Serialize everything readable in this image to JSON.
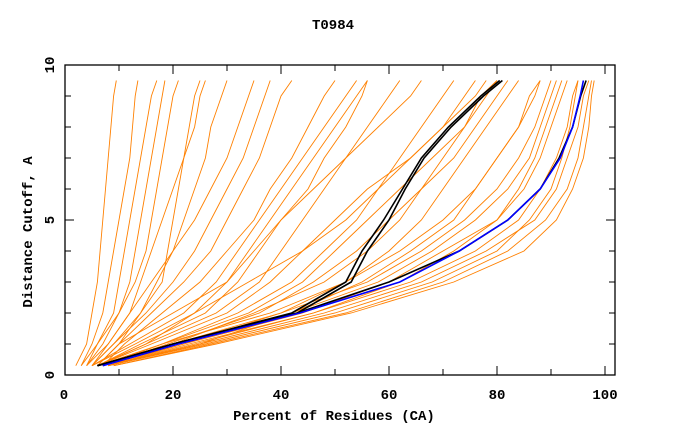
{
  "chart_data": {
    "type": "line",
    "title": "T0984",
    "xlabel": "Percent of Residues (CA)",
    "ylabel": "Distance Cutoff, A",
    "xlim": [
      0,
      102
    ],
    "ylim": [
      0,
      10
    ],
    "x_tick_labels": [
      "0",
      "20",
      "40",
      "60",
      "80",
      "100"
    ],
    "y_tick_labels": [
      "0",
      "5",
      "10"
    ],
    "grid": false,
    "colors": {
      "models": "#ff8000",
      "highlight_black": "#000000",
      "highlight_blue": "#0000ff"
    },
    "y_levels": [
      0.3,
      1,
      2,
      3,
      4,
      5,
      6,
      7,
      8,
      9,
      9.5
    ],
    "model_curves_x": [
      [
        2,
        4,
        5,
        6,
        6.5,
        7,
        7.5,
        8,
        8.5,
        9,
        9.5
      ],
      [
        3,
        5,
        7,
        8,
        9,
        10,
        11,
        12,
        12.5,
        13,
        13.5
      ],
      [
        3,
        6,
        9,
        10,
        11,
        12,
        13,
        14,
        15,
        16,
        17
      ],
      [
        4,
        7,
        10,
        12,
        13,
        14,
        15,
        16,
        17,
        18,
        18.5
      ],
      [
        4,
        6,
        10,
        13,
        15,
        16,
        17,
        18,
        19,
        20,
        21
      ],
      [
        5,
        8,
        12,
        14,
        16,
        18,
        20,
        22,
        23,
        24,
        25
      ],
      [
        5,
        9,
        14,
        18,
        19,
        20,
        21,
        22,
        24,
        25,
        26
      ],
      [
        6,
        10,
        14,
        17,
        20,
        22,
        24,
        26,
        27,
        29,
        30
      ],
      [
        4,
        8,
        12,
        16,
        20,
        24,
        27,
        30,
        32,
        34,
        35
      ],
      [
        5,
        9,
        15,
        20,
        24,
        27,
        30,
        33,
        35,
        37,
        38
      ],
      [
        6,
        10,
        16,
        22,
        27,
        30,
        33,
        36,
        38,
        40,
        42
      ],
      [
        7,
        11,
        18,
        25,
        30,
        35,
        38,
        42,
        45,
        48,
        50
      ],
      [
        6,
        10,
        20,
        30,
        35,
        40,
        45,
        48,
        52,
        55,
        56
      ],
      [
        6,
        15,
        28,
        36,
        40,
        44,
        48,
        52,
        56,
        60,
        62
      ],
      [
        7,
        18,
        32,
        42,
        48,
        54,
        58,
        62,
        66,
        70,
        72
      ],
      [
        8,
        20,
        35,
        48,
        56,
        62,
        66,
        70,
        74,
        77,
        80
      ],
      [
        8,
        22,
        40,
        52,
        60,
        66,
        70,
        74,
        78,
        82,
        84
      ],
      [
        8,
        25,
        42,
        55,
        64,
        72,
        76,
        80,
        84,
        87,
        88
      ],
      [
        7,
        22,
        44,
        60,
        70,
        80,
        85,
        88,
        90,
        92,
        93
      ],
      [
        8,
        24,
        46,
        64,
        76,
        84,
        88,
        91,
        93,
        94,
        95
      ],
      [
        8,
        25,
        48,
        66,
        78,
        87,
        91,
        93,
        95,
        96,
        97
      ],
      [
        9,
        27,
        52,
        70,
        82,
        89,
        93,
        95,
        96,
        97,
        97.5
      ],
      [
        8,
        26,
        50,
        68,
        80,
        86,
        90,
        92,
        93.5,
        94.5,
        95
      ],
      [
        7,
        21,
        42,
        58,
        68,
        76,
        82,
        86,
        88,
        90,
        91
      ],
      [
        8,
        23,
        46,
        62,
        72,
        80,
        84,
        87,
        89,
        91,
        92
      ],
      [
        7,
        20,
        40,
        56,
        66,
        74,
        80,
        84,
        87,
        89,
        90
      ],
      [
        9,
        28,
        53,
        72,
        85,
        91,
        94,
        96,
        97,
        97.5,
        98
      ],
      [
        6,
        18,
        38,
        52,
        62,
        70,
        76,
        80,
        84,
        86,
        88
      ],
      [
        7,
        19,
        36,
        46,
        54,
        60,
        66,
        72,
        76,
        80,
        82
      ],
      [
        7,
        18,
        34,
        44,
        50,
        56,
        62,
        68,
        74,
        78,
        80
      ],
      [
        6,
        16,
        30,
        38,
        44,
        50,
        56,
        64,
        70,
        76,
        78
      ],
      [
        6,
        14,
        26,
        32,
        36,
        40,
        46,
        52,
        58,
        64,
        66
      ],
      [
        5,
        12,
        22,
        28,
        32,
        36,
        40,
        44,
        48,
        52,
        54
      ],
      [
        5,
        13,
        24,
        30,
        34,
        38,
        42,
        46,
        50,
        54,
        56
      ],
      [
        6,
        15,
        24,
        34,
        44,
        52,
        58,
        64,
        70,
        74,
        76
      ]
    ],
    "black_curves_x": [
      [
        6,
        20,
        42,
        52,
        55,
        59,
        62.5,
        66,
        71,
        77,
        80.5
      ],
      [
        6,
        20,
        43,
        53,
        56,
        60,
        63,
        66.5,
        71.5,
        77.5,
        81
      ],
      [
        6,
        20,
        43,
        60,
        73,
        82,
        88,
        91.5,
        94,
        95.5,
        96.5
      ]
    ],
    "blue_curve_x": [
      7,
      21,
      43.5,
      62,
      73,
      82,
      88,
      91.7,
      94,
      95.4,
      96
    ]
  }
}
